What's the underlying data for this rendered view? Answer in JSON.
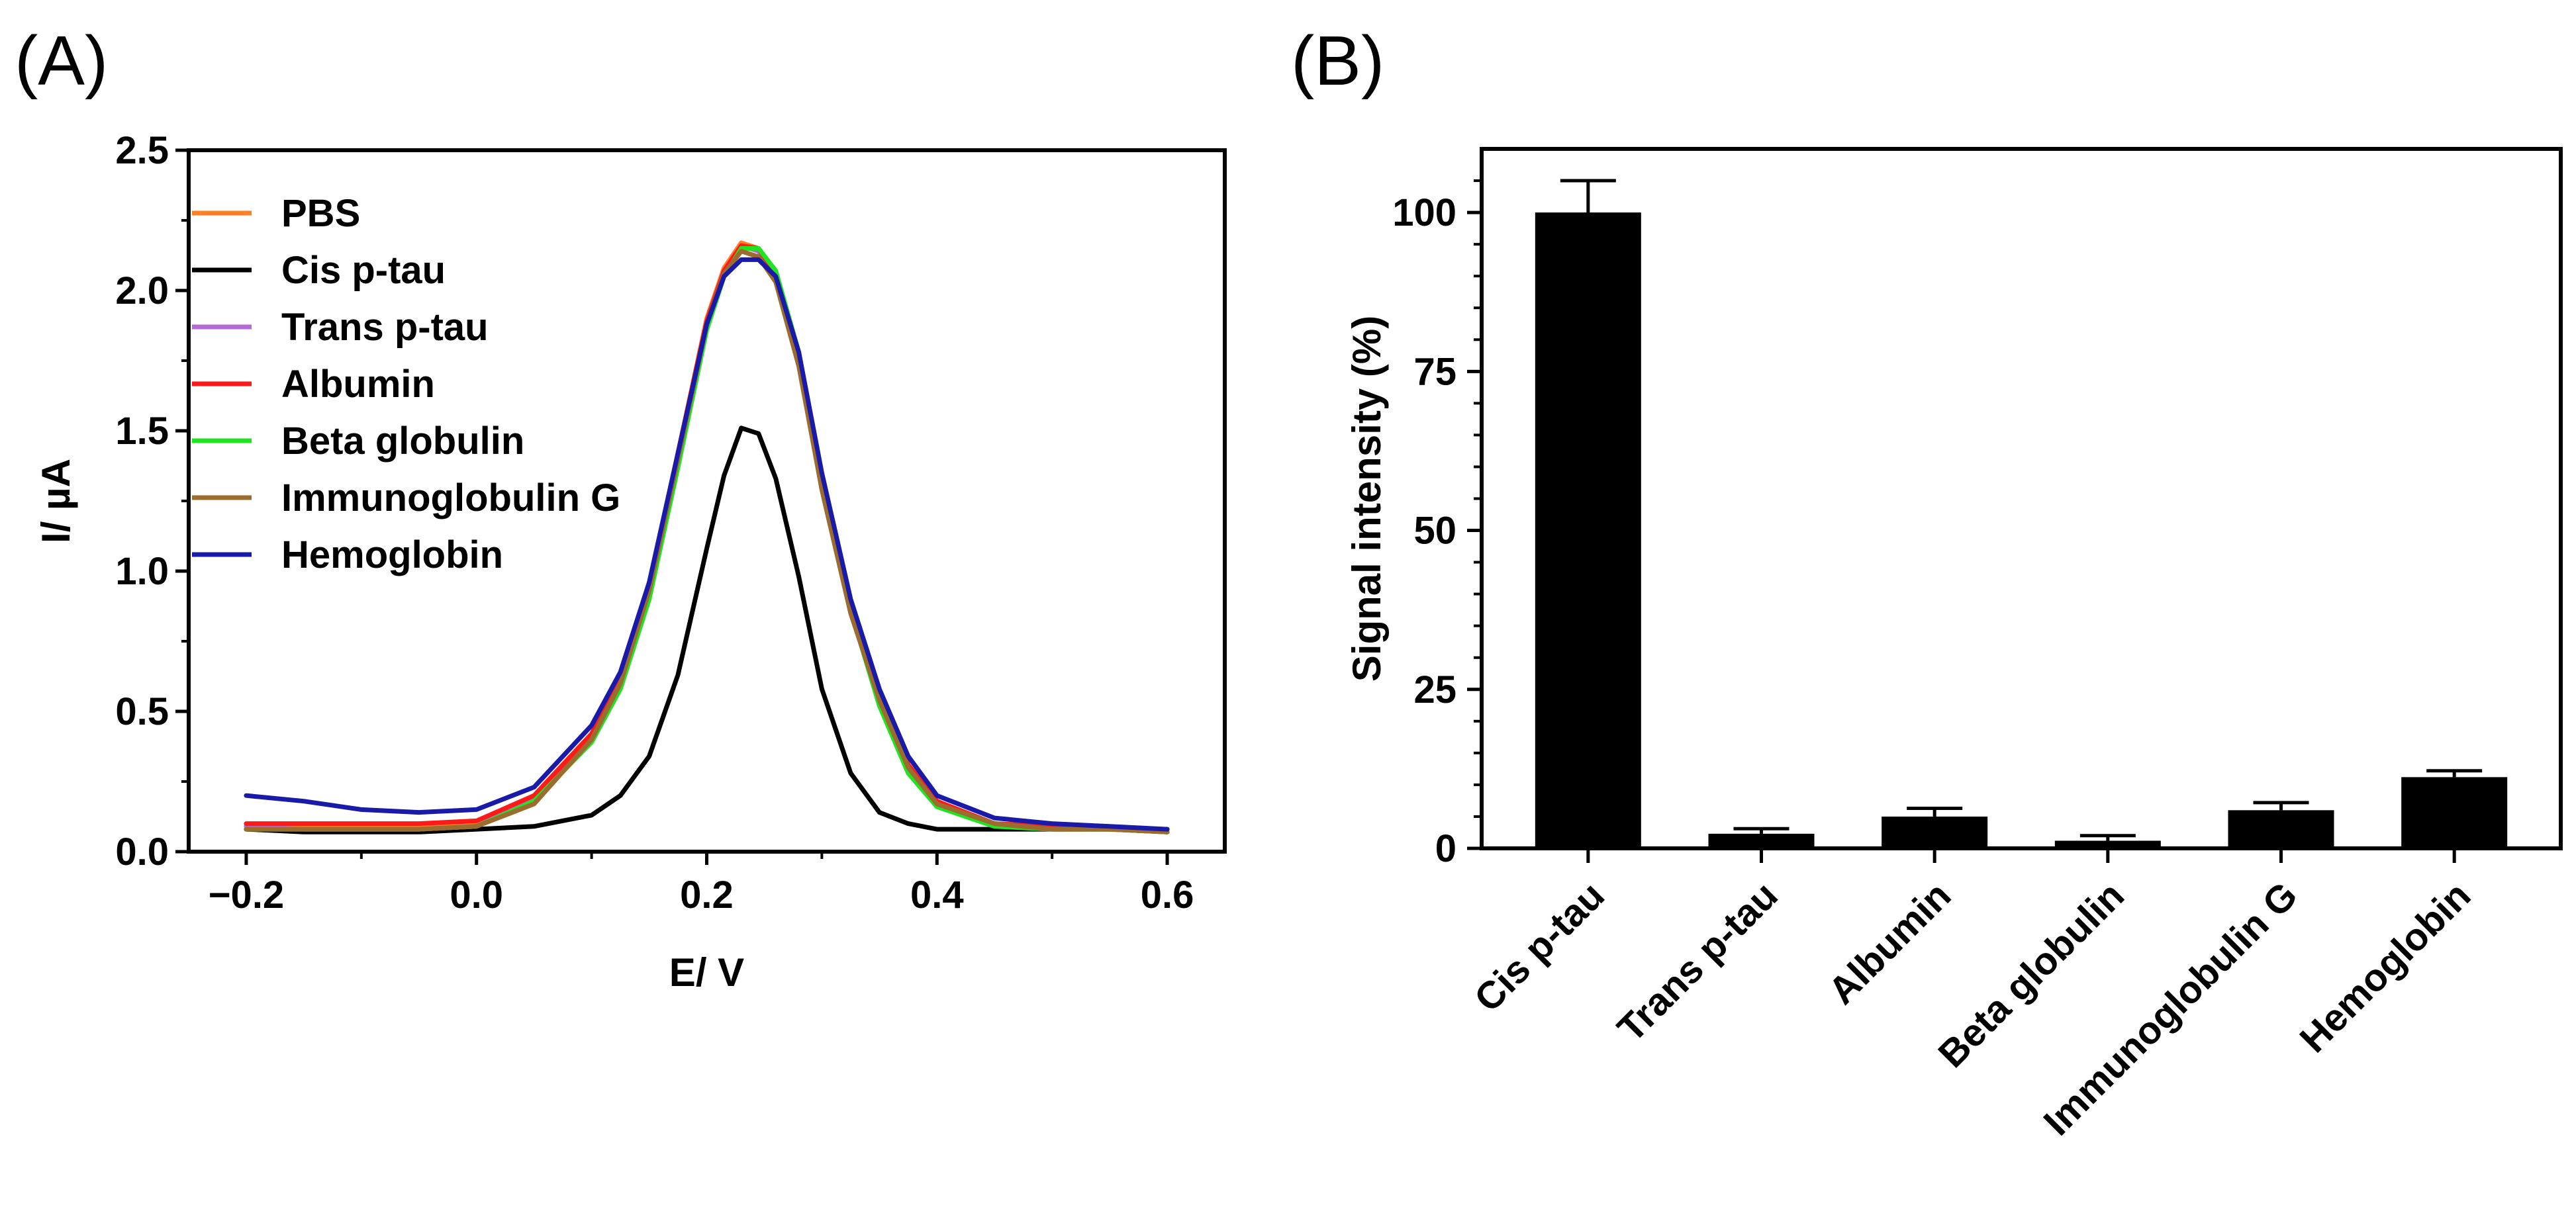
{
  "chart_data": [
    {
      "panel": "(A)",
      "type": "line",
      "title": "",
      "xlabel": "E/ V",
      "ylabel": "I/ µA",
      "xlim": [
        -0.25,
        0.65
      ],
      "ylim": [
        0,
        2.5
      ],
      "xticks": [
        -0.2,
        0.0,
        0.2,
        0.4,
        0.6
      ],
      "xtick_labels": [
        "−0.2",
        "0.0",
        "0.2",
        "0.4",
        "0.6"
      ],
      "yticks": [
        0.0,
        0.5,
        1.0,
        1.5,
        2.0,
        2.5
      ],
      "ytick_labels": [
        "0.0",
        "0.5",
        "1.0",
        "1.5",
        "2.0",
        "2.5"
      ],
      "legend_position": "top-left",
      "series": [
        {
          "name": "PBS",
          "color": "#ff7f27",
          "x": [
            -0.2,
            -0.15,
            -0.1,
            -0.05,
            0.0,
            0.05,
            0.1,
            0.125,
            0.15,
            0.175,
            0.2,
            0.215,
            0.23,
            0.245,
            0.26,
            0.28,
            0.3,
            0.325,
            0.35,
            0.375,
            0.4,
            0.45,
            0.5,
            0.55,
            0.6
          ],
          "y": [
            0.09,
            0.09,
            0.09,
            0.09,
            0.1,
            0.2,
            0.42,
            0.62,
            0.95,
            1.42,
            1.9,
            2.08,
            2.17,
            2.15,
            2.05,
            1.75,
            1.3,
            0.86,
            0.55,
            0.3,
            0.17,
            0.1,
            0.09,
            0.08,
            0.07
          ]
        },
        {
          "name": "Cis p-tau",
          "color": "#000000",
          "x": [
            -0.2,
            -0.15,
            -0.1,
            -0.05,
            0.0,
            0.05,
            0.1,
            0.125,
            0.15,
            0.175,
            0.2,
            0.215,
            0.23,
            0.245,
            0.26,
            0.28,
            0.3,
            0.325,
            0.35,
            0.375,
            0.4,
            0.45,
            0.5,
            0.55,
            0.6
          ],
          "y": [
            0.08,
            0.07,
            0.07,
            0.07,
            0.08,
            0.09,
            0.13,
            0.2,
            0.34,
            0.63,
            1.08,
            1.34,
            1.51,
            1.49,
            1.33,
            0.98,
            0.58,
            0.28,
            0.14,
            0.1,
            0.08,
            0.08,
            0.08,
            0.08,
            0.08
          ]
        },
        {
          "name": "Trans p-tau",
          "color": "#b36ad4",
          "x": [
            -0.2,
            -0.15,
            -0.1,
            -0.05,
            0.0,
            0.05,
            0.1,
            0.125,
            0.15,
            0.175,
            0.2,
            0.215,
            0.23,
            0.245,
            0.26,
            0.28,
            0.3,
            0.325,
            0.35,
            0.375,
            0.4,
            0.45,
            0.5,
            0.55,
            0.6
          ],
          "y": [
            0.09,
            0.08,
            0.08,
            0.08,
            0.09,
            0.19,
            0.41,
            0.61,
            0.94,
            1.41,
            1.89,
            2.07,
            2.16,
            2.14,
            2.04,
            1.74,
            1.29,
            0.85,
            0.54,
            0.3,
            0.17,
            0.1,
            0.08,
            0.08,
            0.07
          ]
        },
        {
          "name": "Albumin",
          "color": "#ff1a1a",
          "x": [
            -0.2,
            -0.15,
            -0.1,
            -0.05,
            0.0,
            0.05,
            0.1,
            0.125,
            0.15,
            0.175,
            0.2,
            0.215,
            0.23,
            0.245,
            0.26,
            0.28,
            0.3,
            0.325,
            0.35,
            0.375,
            0.4,
            0.45,
            0.5,
            0.55,
            0.6
          ],
          "y": [
            0.1,
            0.1,
            0.1,
            0.1,
            0.11,
            0.2,
            0.42,
            0.62,
            0.95,
            1.42,
            1.89,
            2.07,
            2.16,
            2.15,
            2.05,
            1.76,
            1.32,
            0.88,
            0.56,
            0.31,
            0.18,
            0.1,
            0.09,
            0.08,
            0.07
          ]
        },
        {
          "name": "Beta globulin",
          "color": "#22e322",
          "x": [
            -0.2,
            -0.15,
            -0.1,
            -0.05,
            0.0,
            0.05,
            0.1,
            0.125,
            0.15,
            0.175,
            0.2,
            0.215,
            0.23,
            0.245,
            0.26,
            0.28,
            0.3,
            0.325,
            0.35,
            0.375,
            0.4,
            0.45,
            0.5,
            0.55,
            0.6
          ],
          "y": [
            0.08,
            0.08,
            0.08,
            0.08,
            0.09,
            0.18,
            0.39,
            0.58,
            0.9,
            1.37,
            1.86,
            2.05,
            2.15,
            2.15,
            2.07,
            1.78,
            1.33,
            0.86,
            0.52,
            0.28,
            0.16,
            0.09,
            0.08,
            0.08,
            0.07
          ]
        },
        {
          "name": "Immunoglobulin G",
          "color": "#9c6b2e",
          "x": [
            -0.2,
            -0.15,
            -0.1,
            -0.05,
            0.0,
            0.05,
            0.1,
            0.125,
            0.15,
            0.175,
            0.2,
            0.215,
            0.23,
            0.245,
            0.26,
            0.28,
            0.3,
            0.325,
            0.35,
            0.375,
            0.4,
            0.45,
            0.5,
            0.55,
            0.6
          ],
          "y": [
            0.08,
            0.08,
            0.08,
            0.08,
            0.09,
            0.17,
            0.4,
            0.6,
            0.93,
            1.4,
            1.88,
            2.06,
            2.14,
            2.12,
            2.03,
            1.73,
            1.29,
            0.85,
            0.54,
            0.3,
            0.17,
            0.1,
            0.08,
            0.08,
            0.07
          ]
        },
        {
          "name": "Hemoglobin",
          "color": "#1a1aa8",
          "x": [
            -0.2,
            -0.15,
            -0.1,
            -0.05,
            0.0,
            0.05,
            0.1,
            0.125,
            0.15,
            0.175,
            0.2,
            0.215,
            0.23,
            0.245,
            0.26,
            0.28,
            0.3,
            0.325,
            0.35,
            0.375,
            0.4,
            0.45,
            0.5,
            0.55,
            0.6
          ],
          "y": [
            0.2,
            0.18,
            0.15,
            0.14,
            0.15,
            0.23,
            0.45,
            0.64,
            0.96,
            1.42,
            1.88,
            2.05,
            2.11,
            2.11,
            2.05,
            1.78,
            1.35,
            0.9,
            0.58,
            0.34,
            0.2,
            0.12,
            0.1,
            0.09,
            0.08
          ]
        }
      ]
    },
    {
      "panel": "(B)",
      "type": "bar",
      "title": "",
      "xlabel": "",
      "ylabel": "Signal intensity (%)",
      "ylim": [
        0,
        110
      ],
      "yticks": [
        0,
        25,
        50,
        75,
        100
      ],
      "ytick_labels": [
        "0",
        "25",
        "50",
        "75",
        "100"
      ],
      "categories": [
        "Cis p-tau",
        "Trans p-tau",
        "Albumin",
        "Beta globulin",
        "Immunoglobulin G",
        "Hemoglobin"
      ],
      "values": [
        100,
        2.3,
        5,
        1.2,
        6,
        11.2
      ],
      "errors": [
        5,
        0.8,
        1.3,
        0.8,
        1.2,
        1
      ],
      "bar_color": "#000000"
    }
  ]
}
